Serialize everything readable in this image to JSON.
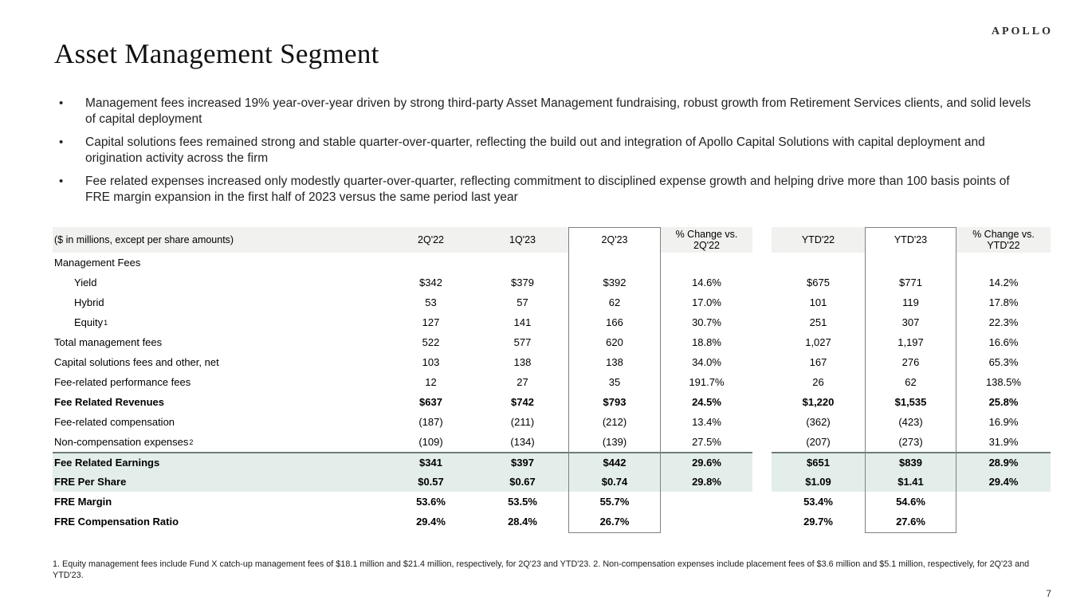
{
  "logo": "APOLLO",
  "title": "Asset Management Segment",
  "bullets": [
    "Management fees increased 19% year-over-year driven by strong third-party Asset Management fundraising, robust growth from Retirement Services clients, and solid levels of capital deployment",
    "Capital solutions fees remained strong and stable quarter-over-quarter, reflecting the build out and integration of Apollo Capital Solutions with capital deployment and origination activity across the firm",
    "Fee related expenses increased only modestly quarter-over-quarter, reflecting commitment to disciplined expense growth and helping drive more than 100 basis points of FRE margin expansion in the first half of 2023 versus the same period last year"
  ],
  "table": {
    "note": "($ in millions, except per share amounts)",
    "columns": [
      "2Q'22",
      "1Q'23",
      "2Q'23",
      "% Change vs. 2Q'22",
      "YTD'22",
      "YTD'23",
      "% Change vs. YTD'22"
    ],
    "rows": [
      {
        "label": "Management Fees",
        "values": [
          "",
          "",
          "",
          "",
          "",
          "",
          ""
        ]
      },
      {
        "label": "Yield",
        "indent": true,
        "values": [
          "$342",
          "$379",
          "$392",
          "14.6%",
          "$675",
          "$771",
          "14.2%"
        ]
      },
      {
        "label": "Hybrid",
        "indent": true,
        "values": [
          "53",
          "57",
          "62",
          "17.0%",
          "101",
          "119",
          "17.8%"
        ]
      },
      {
        "label": "Equity",
        "sup": "1",
        "indent": true,
        "values": [
          "127",
          "141",
          "166",
          "30.7%",
          "251",
          "307",
          "22.3%"
        ]
      },
      {
        "label": "Total management fees",
        "values": [
          "522",
          "577",
          "620",
          "18.8%",
          "1,027",
          "1,197",
          "16.6%"
        ]
      },
      {
        "label": "Capital solutions fees and other, net",
        "values": [
          "103",
          "138",
          "138",
          "34.0%",
          "167",
          "276",
          "65.3%"
        ]
      },
      {
        "label": "Fee-related performance fees",
        "values": [
          "12",
          "27",
          "35",
          "191.7%",
          "26",
          "62",
          "138.5%"
        ]
      },
      {
        "label": "Fee Related Revenues",
        "bold": true,
        "values": [
          "$637",
          "$742",
          "$793",
          "24.5%",
          "$1,220",
          "$1,535",
          "25.8%"
        ]
      },
      {
        "label": "Fee-related compensation",
        "values": [
          "(187)",
          "(211)",
          "(212)",
          "13.4%",
          "(362)",
          "(423)",
          "16.9%"
        ]
      },
      {
        "label": "Non-compensation expenses",
        "sup": "2",
        "values": [
          "(109)",
          "(134)",
          "(139)",
          "27.5%",
          "(207)",
          "(273)",
          "31.9%"
        ]
      },
      {
        "label": "Fee Related Earnings",
        "bold": true,
        "highlight": true,
        "top_border": true,
        "values": [
          "$341",
          "$397",
          "$442",
          "29.6%",
          "$651",
          "$839",
          "28.9%"
        ]
      },
      {
        "label": "FRE Per Share",
        "bold": true,
        "highlight": true,
        "values": [
          "$0.57",
          "$0.67",
          "$0.74",
          "29.8%",
          "$1.09",
          "$1.41",
          "29.4%"
        ]
      },
      {
        "label": "FRE Margin",
        "bold": true,
        "values": [
          "53.6%",
          "53.5%",
          "55.7%",
          "",
          "53.4%",
          "54.6%",
          ""
        ]
      },
      {
        "label": "FRE Compensation Ratio",
        "bold": true,
        "values": [
          "29.4%",
          "28.4%",
          "26.7%",
          "",
          "29.7%",
          "27.6%",
          ""
        ]
      }
    ]
  },
  "footnote": "1. Equity management fees include Fund X catch-up management fees of $18.1 million and $21.4 million, respectively, for 2Q'23 and YTD'23. 2. Non-compensation expenses include placement fees of $3.6 million and $5.1 million, respectively, for 2Q'23 and YTD'23.",
  "page_number": "7",
  "colors": {
    "header_band": "#f1f1ef",
    "highlight_row": "#e3eeea",
    "box_border": "#808080",
    "rule_above_earnings": "#6f7d79"
  }
}
